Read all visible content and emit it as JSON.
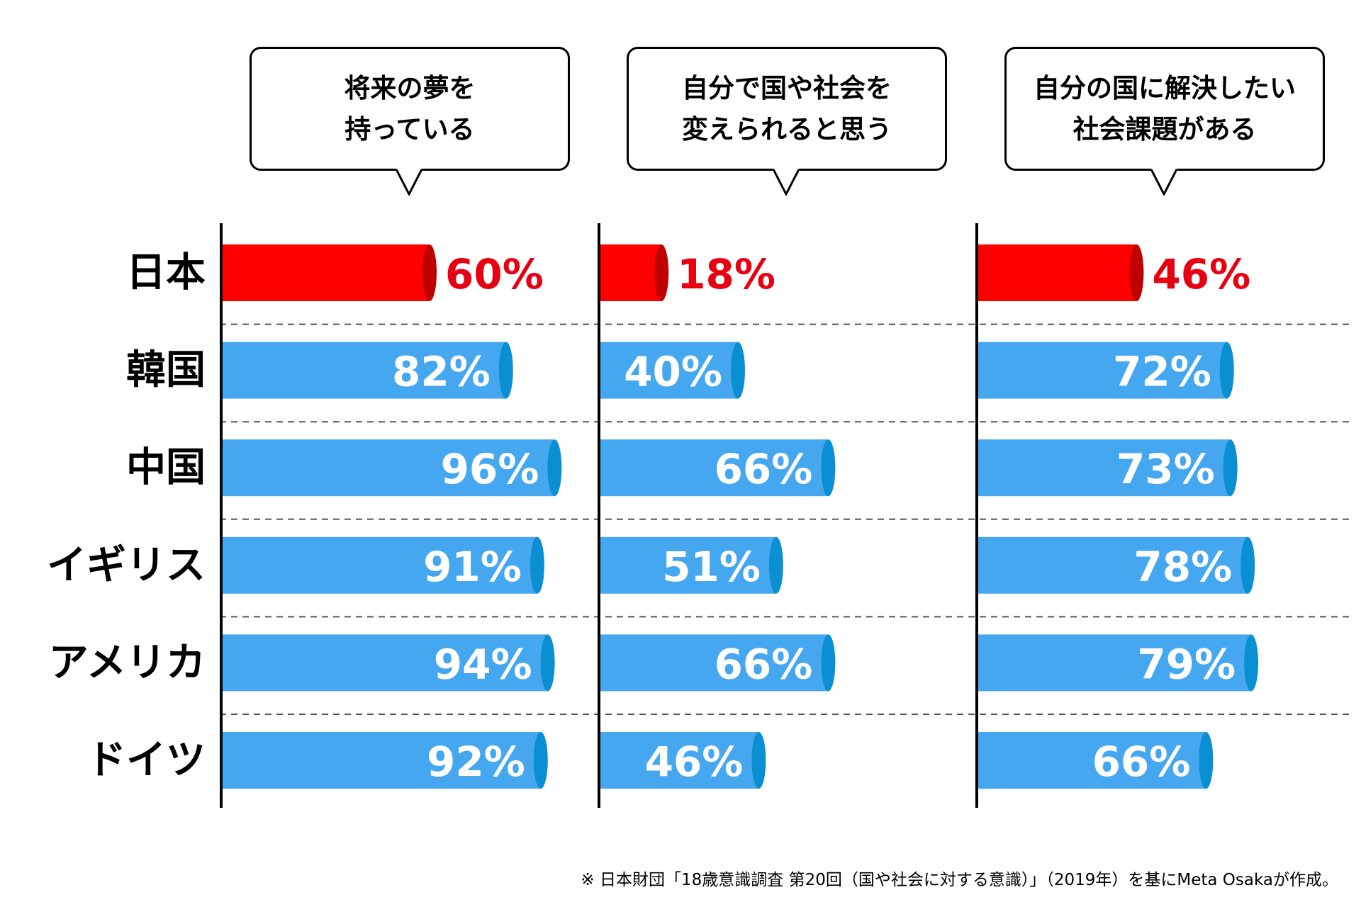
{
  "chart_data": {
    "type": "bar",
    "orientation": "horizontal",
    "categories": [
      "日本",
      "韓国",
      "中国",
      "イギリス",
      "アメリカ",
      "ドイツ"
    ],
    "series": [
      {
        "name": "将来の夢を持っている",
        "label_lines": [
          "将来の夢を",
          "持っている"
        ],
        "values": [
          60,
          82,
          96,
          91,
          94,
          92
        ],
        "value_labels": [
          "60%",
          "82%",
          "96%",
          "91%",
          "94%",
          "92%"
        ]
      },
      {
        "name": "自分で国や社会を変えられると思う",
        "label_lines": [
          "自分で国や社会を",
          "変えられると思う"
        ],
        "values": [
          18,
          40,
          66,
          51,
          66,
          46
        ],
        "value_labels": [
          "18%",
          "40%",
          "66%",
          "51%",
          "66%",
          "46%"
        ]
      },
      {
        "name": "自分の国に解決したい社会課題がある",
        "label_lines": [
          "自分の国に解決したい",
          "社会課題がある"
        ],
        "values": [
          46,
          72,
          73,
          78,
          79,
          66
        ],
        "value_labels": [
          "46%",
          "72%",
          "73%",
          "78%",
          "79%",
          "66%"
        ]
      }
    ],
    "unit": "%",
    "xlim": [
      0,
      100
    ],
    "colors": {
      "highlight": "#ff0000",
      "highlight_cap": "#c00000",
      "highlight_label": "#e60012",
      "normal": "#45a7f0",
      "normal_cap": "#0a8fd2",
      "normal_label": "#ffffff",
      "axis": "#000000",
      "row_separator": "#555555"
    },
    "highlight_category": "日本",
    "grid": false,
    "legend": "speech-bubbles-above-panels"
  },
  "footnote": "※ 日本財団「18歳意識調査 第20回（国や社会に対する意識）」（2019年）を基にMeta Osakaが作成。"
}
